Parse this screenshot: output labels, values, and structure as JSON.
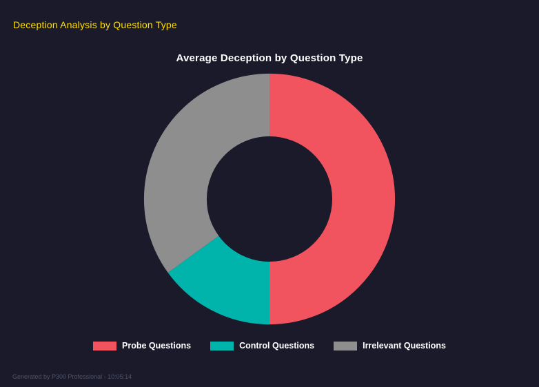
{
  "page": {
    "heading": "Deception Analysis by Question Type",
    "footer": "Generated by P300 Professional - 10:05:14",
    "colors": {
      "background": "#1a1a2b",
      "heading": "#ffe000",
      "title": "#ffffff",
      "footer": "#4f5468"
    }
  },
  "chart_data": {
    "type": "pie",
    "style": "donut",
    "title": "Average Deception by Question Type",
    "categories": [
      "Probe Questions",
      "Control Questions",
      "Irrelevant Questions"
    ],
    "values": [
      50,
      15,
      35
    ],
    "colors": [
      "#f2545f",
      "#00b3ab",
      "#8e8e8e"
    ],
    "start_angle_deg": 0,
    "direction": "clockwise",
    "cutout_percent": 50,
    "legend_position": "bottom",
    "data_labels": false
  }
}
